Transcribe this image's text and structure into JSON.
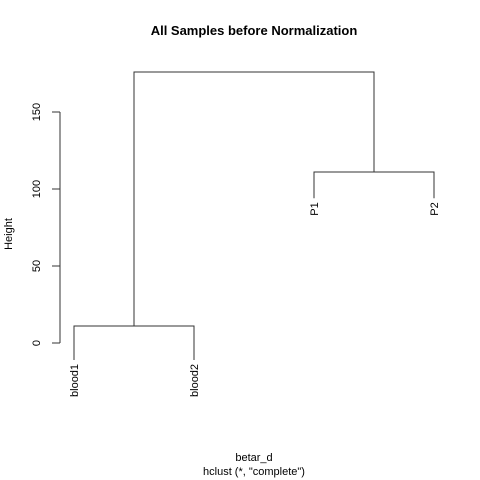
{
  "chart_data": {
    "type": "dendrogram",
    "title": "All Samples before Normalization",
    "xlabel": "betar_d",
    "sublabel": "hclust (*, \"complete\")",
    "ylabel": "Height",
    "ylim": [
      0,
      177
    ],
    "yticks": [
      0,
      50,
      100,
      150
    ],
    "leaves": [
      {
        "name": "blood1",
        "height": -11
      },
      {
        "name": "blood2",
        "height": -11
      },
      {
        "name": "P1",
        "height": 94
      },
      {
        "name": "P2",
        "height": 94
      }
    ],
    "merges": [
      {
        "left": 0,
        "right": 1,
        "height": 11
      },
      {
        "left": 2,
        "right": 3,
        "height": 111
      },
      {
        "left": "m0",
        "right": "m1",
        "height": 176
      }
    ]
  }
}
